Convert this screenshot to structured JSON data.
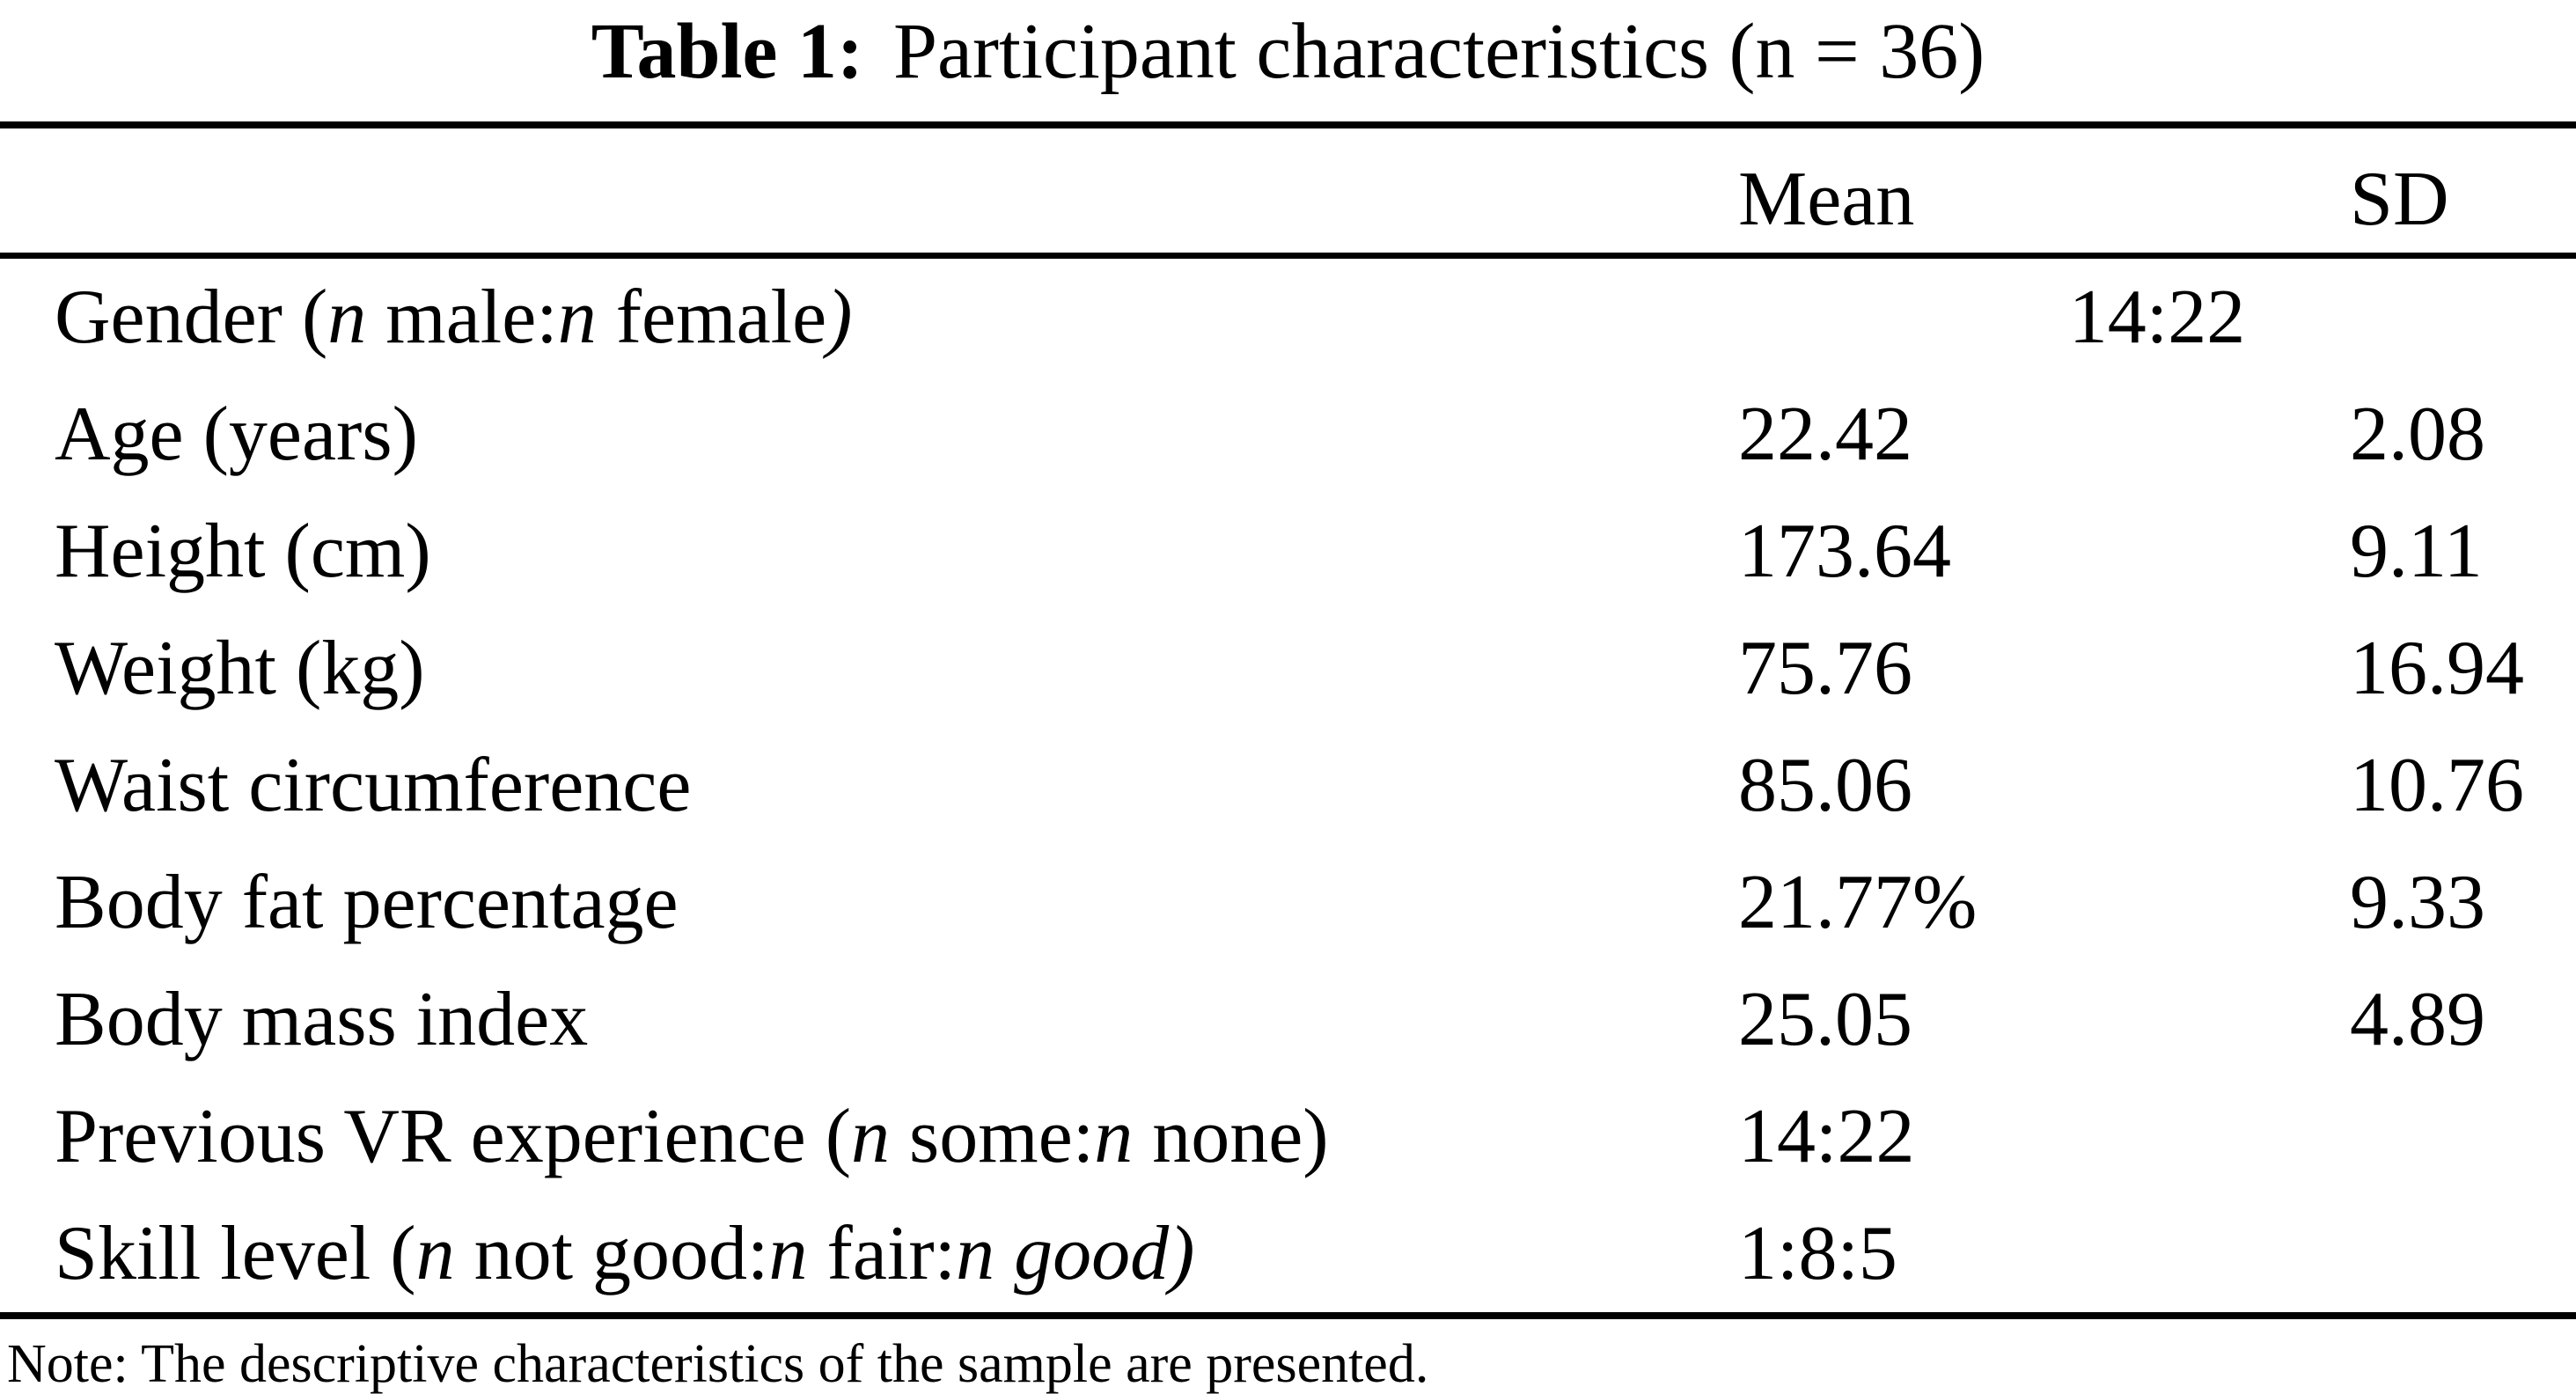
{
  "colors": {
    "text": "#000000",
    "background": "#ffffff"
  },
  "caption": {
    "label": "Table 1:",
    "text": "Participant characteristics (n = 36)"
  },
  "table": {
    "columns": {
      "mean": "Mean",
      "sd": "SD"
    },
    "rows": [
      {
        "label_runs": [
          {
            "t": "Gender ("
          },
          {
            "t": "n",
            "i": true
          },
          {
            "t": " male:"
          },
          {
            "t": "n",
            "i": true
          },
          {
            "t": " female"
          },
          {
            "t": ")",
            "i": true
          }
        ],
        "mean": "14:22",
        "sd": "",
        "spans_columns": true
      },
      {
        "label_runs": [
          {
            "t": "Age (years)"
          }
        ],
        "mean": "22.42",
        "sd": "2.08"
      },
      {
        "label_runs": [
          {
            "t": "Height (cm)"
          }
        ],
        "mean": "173.64",
        "sd": "9.11"
      },
      {
        "label_runs": [
          {
            "t": "Weight (kg)"
          }
        ],
        "mean": "75.76",
        "sd": "16.94"
      },
      {
        "label_runs": [
          {
            "t": "Waist circumference"
          }
        ],
        "mean": "85.06",
        "sd": "10.76"
      },
      {
        "label_runs": [
          {
            "t": "Body fat percentage"
          }
        ],
        "mean": "21.77%",
        "sd": "9.33"
      },
      {
        "label_runs": [
          {
            "t": "Body mass index"
          }
        ],
        "mean": "25.05",
        "sd": "4.89"
      },
      {
        "label_runs": [
          {
            "t": "Previous VR experience ("
          },
          {
            "t": "n",
            "i": true
          },
          {
            "t": " some:"
          },
          {
            "t": "n",
            "i": true
          },
          {
            "t": " none)"
          }
        ],
        "mean": "14:22",
        "sd": ""
      },
      {
        "label_runs": [
          {
            "t": "Skill level ("
          },
          {
            "t": "n",
            "i": true
          },
          {
            "t": " not good:"
          },
          {
            "t": "n",
            "i": true
          },
          {
            "t": " fair:"
          },
          {
            "t": "n",
            "i": true
          },
          {
            "t": " "
          },
          {
            "t": "good)",
            "i": true
          }
        ],
        "mean": "1:8:5",
        "sd": ""
      }
    ]
  },
  "note": "Note: The descriptive characteristics of the sample are presented."
}
